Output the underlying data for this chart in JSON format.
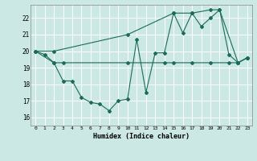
{
  "xlabel": "Humidex (Indice chaleur)",
  "background_color": "#cce8e4",
  "grid_color": "#ffffff",
  "line_color": "#1a6b5a",
  "x_ticks": [
    0,
    1,
    2,
    3,
    4,
    5,
    6,
    7,
    8,
    9,
    10,
    11,
    12,
    13,
    14,
    15,
    16,
    17,
    18,
    19,
    20,
    21,
    22,
    23
  ],
  "ylim": [
    15.5,
    22.8
  ],
  "xlim": [
    -0.5,
    23.5
  ],
  "line1_x": [
    0,
    1,
    2,
    3,
    4,
    5,
    6,
    7,
    8,
    9,
    10,
    11,
    12,
    13,
    14,
    15,
    16,
    17,
    18,
    19,
    20,
    21,
    22,
    23
  ],
  "line1_y": [
    20.0,
    19.8,
    19.3,
    18.2,
    18.2,
    17.2,
    16.9,
    16.8,
    16.4,
    17.0,
    17.1,
    20.7,
    17.5,
    19.9,
    19.9,
    22.3,
    21.1,
    22.3,
    21.5,
    22.0,
    22.5,
    19.8,
    19.3,
    19.6
  ],
  "line2_x": [
    0,
    2,
    3,
    10,
    14,
    15,
    17,
    19,
    21,
    22,
    23
  ],
  "line2_y": [
    20.0,
    19.3,
    19.3,
    19.3,
    19.3,
    19.3,
    19.3,
    19.3,
    19.3,
    19.3,
    19.6
  ],
  "line3_x": [
    0,
    2,
    10,
    15,
    17,
    19,
    20,
    22,
    23
  ],
  "line3_y": [
    20.0,
    20.0,
    21.0,
    22.3,
    22.3,
    22.5,
    22.5,
    19.3,
    19.6
  ]
}
